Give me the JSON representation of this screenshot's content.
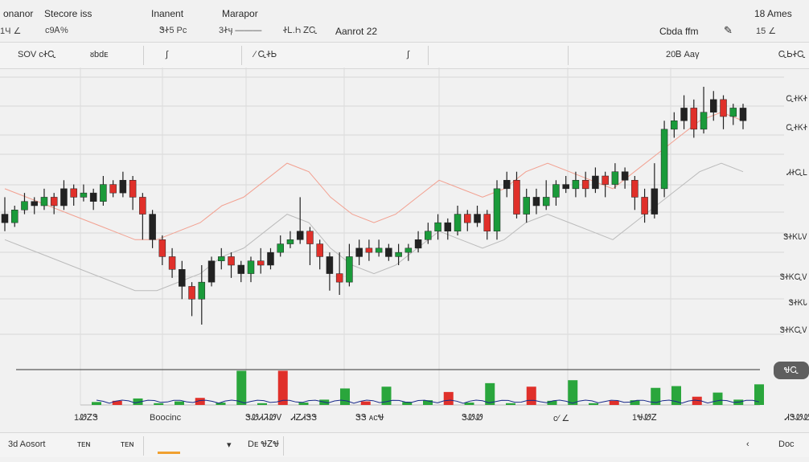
{
  "header": {
    "items": [
      {
        "label": "onanor",
        "value": "1Ч ∠"
      },
      {
        "label": "Stecore iss",
        "value": "ᴄ9Ꭺ%"
      },
      {
        "label": "Inanent",
        "value": "ᏕᏐ5 Pᴄ"
      },
      {
        "label": "Marapor",
        "value": "3Ꮠӌ ———"
      },
      {
        "value": "ᏐᏞ.Һ ᏃᏩ"
      },
      {
        "value": "Aanrot 22"
      },
      {
        "label": "18 Ames",
        "value": "15 ∠"
      },
      {
        "value": "Cbda ffm"
      }
    ]
  },
  "toolbar": {
    "items": [
      "SOV ᴄᏐᏩ",
      "ᴕbdᴇ",
      "∕ ᏩᏐᏏ"
    ],
    "right": [
      "20Ᏼ Aaγ",
      "ᏩᏏᏐᏩ"
    ]
  },
  "chart_data": {
    "type": "candlestick",
    "price_labels": [
      "ᏩᏐᏦᏐ",
      "ᏩᏐᏦᏐ",
      "ᏗᏐᏩᏞ",
      "ᏕᏐᏦᏓᏙ",
      "ᏕᏐᏦᏩᏙ",
      "ᏕᏐᏦᏓ"
    ],
    "right_pill": "ᏠᏩ",
    "ohlc": [
      [
        10,
        9,
        12,
        8
      ],
      [
        9,
        10.5,
        11,
        8.5
      ],
      [
        10.5,
        11.5,
        12.5,
        10
      ],
      [
        11.5,
        11,
        12,
        10
      ],
      [
        11,
        12,
        13,
        10.5
      ],
      [
        12,
        11,
        12.5,
        10
      ],
      [
        11,
        13,
        14,
        10.5
      ],
      [
        13,
        12,
        13.5,
        11
      ],
      [
        12,
        12.5,
        13.5,
        11.5
      ],
      [
        12.5,
        11.5,
        13,
        10.5
      ],
      [
        11.5,
        13.5,
        14.5,
        11
      ],
      [
        13.5,
        12.5,
        14,
        12
      ],
      [
        12.5,
        14,
        15,
        12
      ],
      [
        14,
        12,
        14.5,
        10.5
      ],
      [
        12,
        10,
        12.5,
        7
      ],
      [
        10,
        7,
        10.5,
        6
      ],
      [
        7,
        5,
        7.5,
        4
      ],
      [
        5,
        3.5,
        6,
        2.5
      ],
      [
        3.5,
        1.5,
        4.5,
        0
      ],
      [
        1.5,
        0,
        2,
        -2
      ],
      [
        0,
        2,
        4,
        -3
      ],
      [
        2,
        4.5,
        5,
        1.5
      ],
      [
        4.5,
        5,
        6,
        3.5
      ],
      [
        5,
        4,
        5.5,
        2.5
      ],
      [
        4,
        3,
        4.5,
        2
      ],
      [
        3,
        4.5,
        5,
        2
      ],
      [
        4.5,
        4,
        6,
        3
      ],
      [
        4,
        5.5,
        6,
        3.5
      ],
      [
        5.5,
        6.5,
        7.5,
        5
      ],
      [
        6.5,
        7,
        8,
        6
      ],
      [
        7,
        8,
        12,
        6.5
      ],
      [
        8,
        6.5,
        8.5,
        4
      ],
      [
        6.5,
        5,
        7,
        3.5
      ],
      [
        5,
        3,
        5.5,
        1
      ],
      [
        3,
        2,
        5.5,
        0.5
      ],
      [
        2,
        5,
        6.5,
        1.5
      ],
      [
        5,
        6,
        7,
        4
      ],
      [
        6,
        5.5,
        7,
        4.5
      ],
      [
        5.5,
        6,
        7,
        5
      ],
      [
        6,
        5,
        6.5,
        4.5
      ],
      [
        5,
        5.5,
        6.5,
        4
      ],
      [
        5.5,
        6,
        6.5,
        4.5
      ],
      [
        6,
        7,
        8,
        5.5
      ],
      [
        7,
        8,
        9,
        6.5
      ],
      [
        8,
        9,
        10,
        7
      ],
      [
        9,
        8,
        9.5,
        7
      ],
      [
        8,
        10,
        11,
        7.5
      ],
      [
        10,
        9,
        10.5,
        8
      ],
      [
        9,
        10,
        11,
        8.5
      ],
      [
        10,
        8,
        10.5,
        7
      ],
      [
        8,
        13,
        14,
        7
      ],
      [
        13,
        14,
        15,
        12
      ],
      [
        14,
        10,
        15,
        9.5
      ],
      [
        10,
        12,
        13,
        9
      ],
      [
        12,
        11,
        13,
        10
      ],
      [
        11,
        12,
        14,
        10.5
      ],
      [
        12,
        13.5,
        14,
        11
      ],
      [
        13.5,
        13,
        14.5,
        12.5
      ],
      [
        13,
        14,
        15,
        12
      ],
      [
        14,
        13,
        15,
        12
      ],
      [
        13,
        14.5,
        15.5,
        12.5
      ],
      [
        14.5,
        13.5,
        15,
        12
      ],
      [
        13.5,
        15,
        16,
        13
      ],
      [
        15,
        14,
        15.5,
        13
      ],
      [
        14,
        12,
        14.5,
        10.5
      ],
      [
        12,
        10,
        13,
        9
      ],
      [
        10,
        13,
        16,
        9.5
      ],
      [
        13,
        20,
        21,
        12
      ],
      [
        20,
        21,
        22,
        19
      ],
      [
        21,
        22.5,
        24,
        20
      ],
      [
        22.5,
        20,
        23.5,
        19
      ],
      [
        20,
        22,
        25,
        19.5
      ],
      [
        22,
        23.5,
        24.5,
        21
      ],
      [
        23.5,
        21.5,
        24,
        20
      ],
      [
        21.5,
        22.5,
        23,
        20.5
      ],
      [
        22.5,
        21,
        23,
        20
      ]
    ],
    "volumes": [
      0.5,
      0.7,
      1.1,
      0.3,
      0.6,
      1.2,
      0.4,
      5.8,
      0.3,
      5.8,
      0.4,
      0.9,
      2.8,
      0.6,
      3.1,
      0.5,
      0.8,
      2.2,
      0.4,
      3.7,
      0.3,
      3.1,
      0.7,
      4.2,
      0.3,
      0.7,
      0.8,
      2.9,
      3.2,
      1.4,
      2.1,
      0.9,
      3.5
    ],
    "ma_values": [
      13,
      12,
      11,
      10,
      9,
      8,
      7,
      7,
      8,
      9,
      11,
      12,
      14,
      16,
      15,
      12,
      10,
      9,
      10,
      12,
      14,
      13,
      12,
      13,
      15,
      16,
      15,
      14,
      13,
      15,
      17,
      19,
      21,
      22,
      21
    ]
  },
  "footer": {
    "labels": [
      "1ᏪᏃᏕ",
      "Boocinc",
      "ᏕᏪᏗᏘᏪᏙ",
      "ᏗᏃᏗᏕᏕ",
      "ᏕᏕ ᴀᴄᏠ",
      "ᏕᏪᏪ",
      "ᴄ∕ ∠",
      "1ᏠᏪᏃ",
      "ᏗᏕᏪᏪ"
    ]
  },
  "bottom_bar": {
    "items": [
      "3d Aosort",
      "ᴛᴇɴ",
      "ᴛᴇɴ",
      "Dᴇ ᏠᏃᏠ",
      "Dᴏᴄ"
    ]
  }
}
